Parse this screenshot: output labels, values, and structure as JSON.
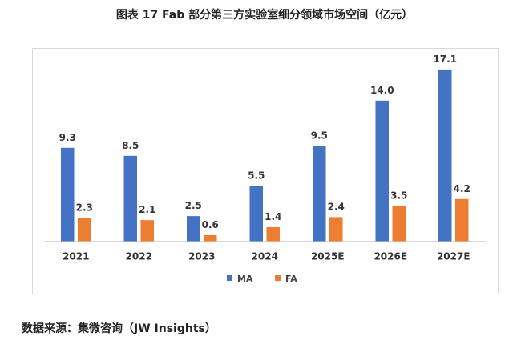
{
  "chart_data": {
    "type": "bar",
    "title": "图表 17 Fab 部分第三方实验室细分领域市场空间（亿元）",
    "categories": [
      "2021",
      "2022",
      "2023",
      "2024",
      "2025E",
      "2026E",
      "2027E"
    ],
    "series": [
      {
        "name": "MA",
        "values": [
          9.3,
          8.5,
          2.5,
          5.5,
          9.5,
          14.0,
          17.1
        ],
        "color": "#4472C4"
      },
      {
        "name": "FA",
        "values": [
          2.3,
          2.1,
          0.6,
          1.4,
          2.4,
          3.5,
          4.2
        ],
        "color": "#ED7D31"
      }
    ],
    "grid": false,
    "legend": "bottom"
  },
  "source": "数据来源：集微咨询（JW Insights）"
}
